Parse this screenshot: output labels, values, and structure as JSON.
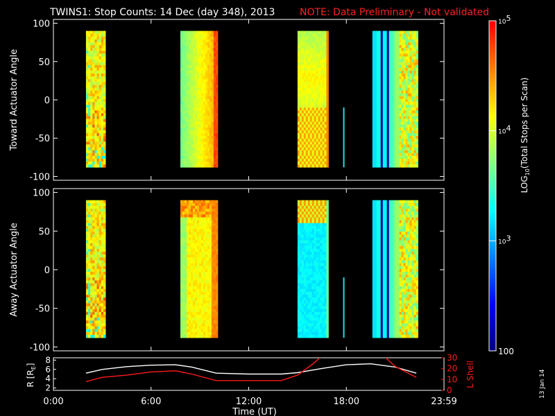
{
  "header": {
    "title": "TWINS1: Stop Counts: 14 Dec (day 348), 2013",
    "note": "NOTE: Data Preliminary - Not validated",
    "note_color": "#ff2020"
  },
  "side_stamp": "13 Jan 14",
  "chart_data": [
    {
      "type": "heatmap",
      "panel": "top",
      "ylabel": "Toward Actuator Angle",
      "ylim": [
        -105,
        105
      ],
      "y_ticks": [
        100,
        50,
        0,
        -50,
        -100
      ],
      "y_tick_labels": [
        "100",
        "50",
        "0",
        "-50",
        "-100"
      ],
      "x_unit": "hours (UT)",
      "xlim": [
        0,
        24
      ],
      "angle_range": [
        -88,
        90
      ],
      "data_blocks": [
        {
          "x_start": 2.0,
          "x_end": 3.2,
          "pattern": "mixed-orange-yellow"
        },
        {
          "x_start": 7.8,
          "x_end": 10.1,
          "pattern": "green-yellow-to-red"
        },
        {
          "x_start": 15.0,
          "x_end": 16.9,
          "pattern": "yellow-orange-band"
        },
        {
          "x_start": 19.6,
          "x_end": 22.4,
          "pattern": "cyan-stripes-to-orange"
        }
      ]
    },
    {
      "type": "heatmap",
      "panel": "middle",
      "ylabel": "Away Actuator Angle",
      "ylim": [
        -105,
        105
      ],
      "y_ticks": [
        100,
        50,
        0,
        -50,
        -100
      ],
      "y_tick_labels": [
        "100",
        "50",
        "0",
        "-50",
        "-100"
      ],
      "x_unit": "hours (UT)",
      "xlim": [
        0,
        24
      ],
      "angle_range": [
        -88,
        90
      ],
      "data_blocks": [
        {
          "x_start": 2.0,
          "x_end": 3.2,
          "pattern": "mixed-orange-yellow"
        },
        {
          "x_start": 7.8,
          "x_end": 10.1,
          "pattern": "orange-band"
        },
        {
          "x_start": 15.0,
          "x_end": 16.9,
          "pattern": "cyan-to-orange"
        },
        {
          "x_start": 19.6,
          "x_end": 22.4,
          "pattern": "cyan-stripes-to-orange"
        }
      ]
    },
    {
      "type": "line",
      "panel": "bottom",
      "ylabel_left": "R [R",
      "ylabel_left_sub": "E",
      "ylabel_left_end": "]",
      "ylabel_right": "L Shell",
      "xlabel": "Time (UT)",
      "xlim": [
        0,
        24
      ],
      "x_ticks": [
        0,
        6,
        12,
        18,
        24
      ],
      "x_tick_labels": [
        "0:00",
        "6:00",
        "12:00",
        "18:00",
        "23:59"
      ],
      "left_ylim": [
        1.5,
        8.5
      ],
      "left_ticks": [
        2,
        4,
        6,
        8
      ],
      "left_tick_labels": [
        "2",
        "4",
        "6",
        "8"
      ],
      "right_ylim": [
        0,
        30
      ],
      "right_ticks": [
        0,
        10,
        20,
        30
      ],
      "right_tick_labels": [
        "0",
        "10",
        "20",
        "30"
      ],
      "series": [
        {
          "color": "#ffffff",
          "axis": "left",
          "x": [
            2.0,
            3.0,
            4.5,
            6.0,
            7.5,
            8.5,
            10.0,
            12.0,
            14.0,
            15.0,
            16.5,
            18.0,
            19.5,
            21.0,
            22.3
          ],
          "y": [
            5.2,
            6.0,
            6.6,
            6.9,
            7.0,
            6.5,
            5.2,
            5.0,
            5.0,
            5.3,
            6.2,
            7.0,
            7.2,
            6.5,
            5.2
          ]
        },
        {
          "color": "#ff1a1a",
          "axis": "right",
          "x": [
            2.0,
            3.0,
            4.5,
            6.0,
            7.5,
            8.5,
            10.0,
            12.0,
            14.0,
            15.0,
            16.0,
            16.6,
            20.2,
            21.0,
            22.3
          ],
          "y": [
            8,
            12,
            14,
            17,
            18,
            15,
            9,
            9,
            9,
            14,
            25,
            33,
            33,
            22,
            12
          ]
        }
      ]
    }
  ],
  "colorbar": {
    "label_prefix": "LOG",
    "label_sub": "10",
    "label_suffix": "(Total Stops per Scan)",
    "tick_labels": [
      {
        "base": "10",
        "exp": "5",
        "value": 100000
      },
      {
        "base": "10",
        "exp": "4",
        "value": 10000
      },
      {
        "base": "10",
        "exp": "3",
        "value": 1000
      },
      {
        "base": "",
        "exp": "",
        "text": "100",
        "value": 100
      }
    ],
    "scale": "log",
    "range": [
      100,
      100000
    ]
  },
  "colors": {
    "background": "#000000",
    "axes": "#ffffff",
    "palette": [
      "#000080",
      "#0000ff",
      "#0080ff",
      "#00ffff",
      "#80ff80",
      "#ffff00",
      "#ff8000",
      "#ff0000"
    ]
  }
}
